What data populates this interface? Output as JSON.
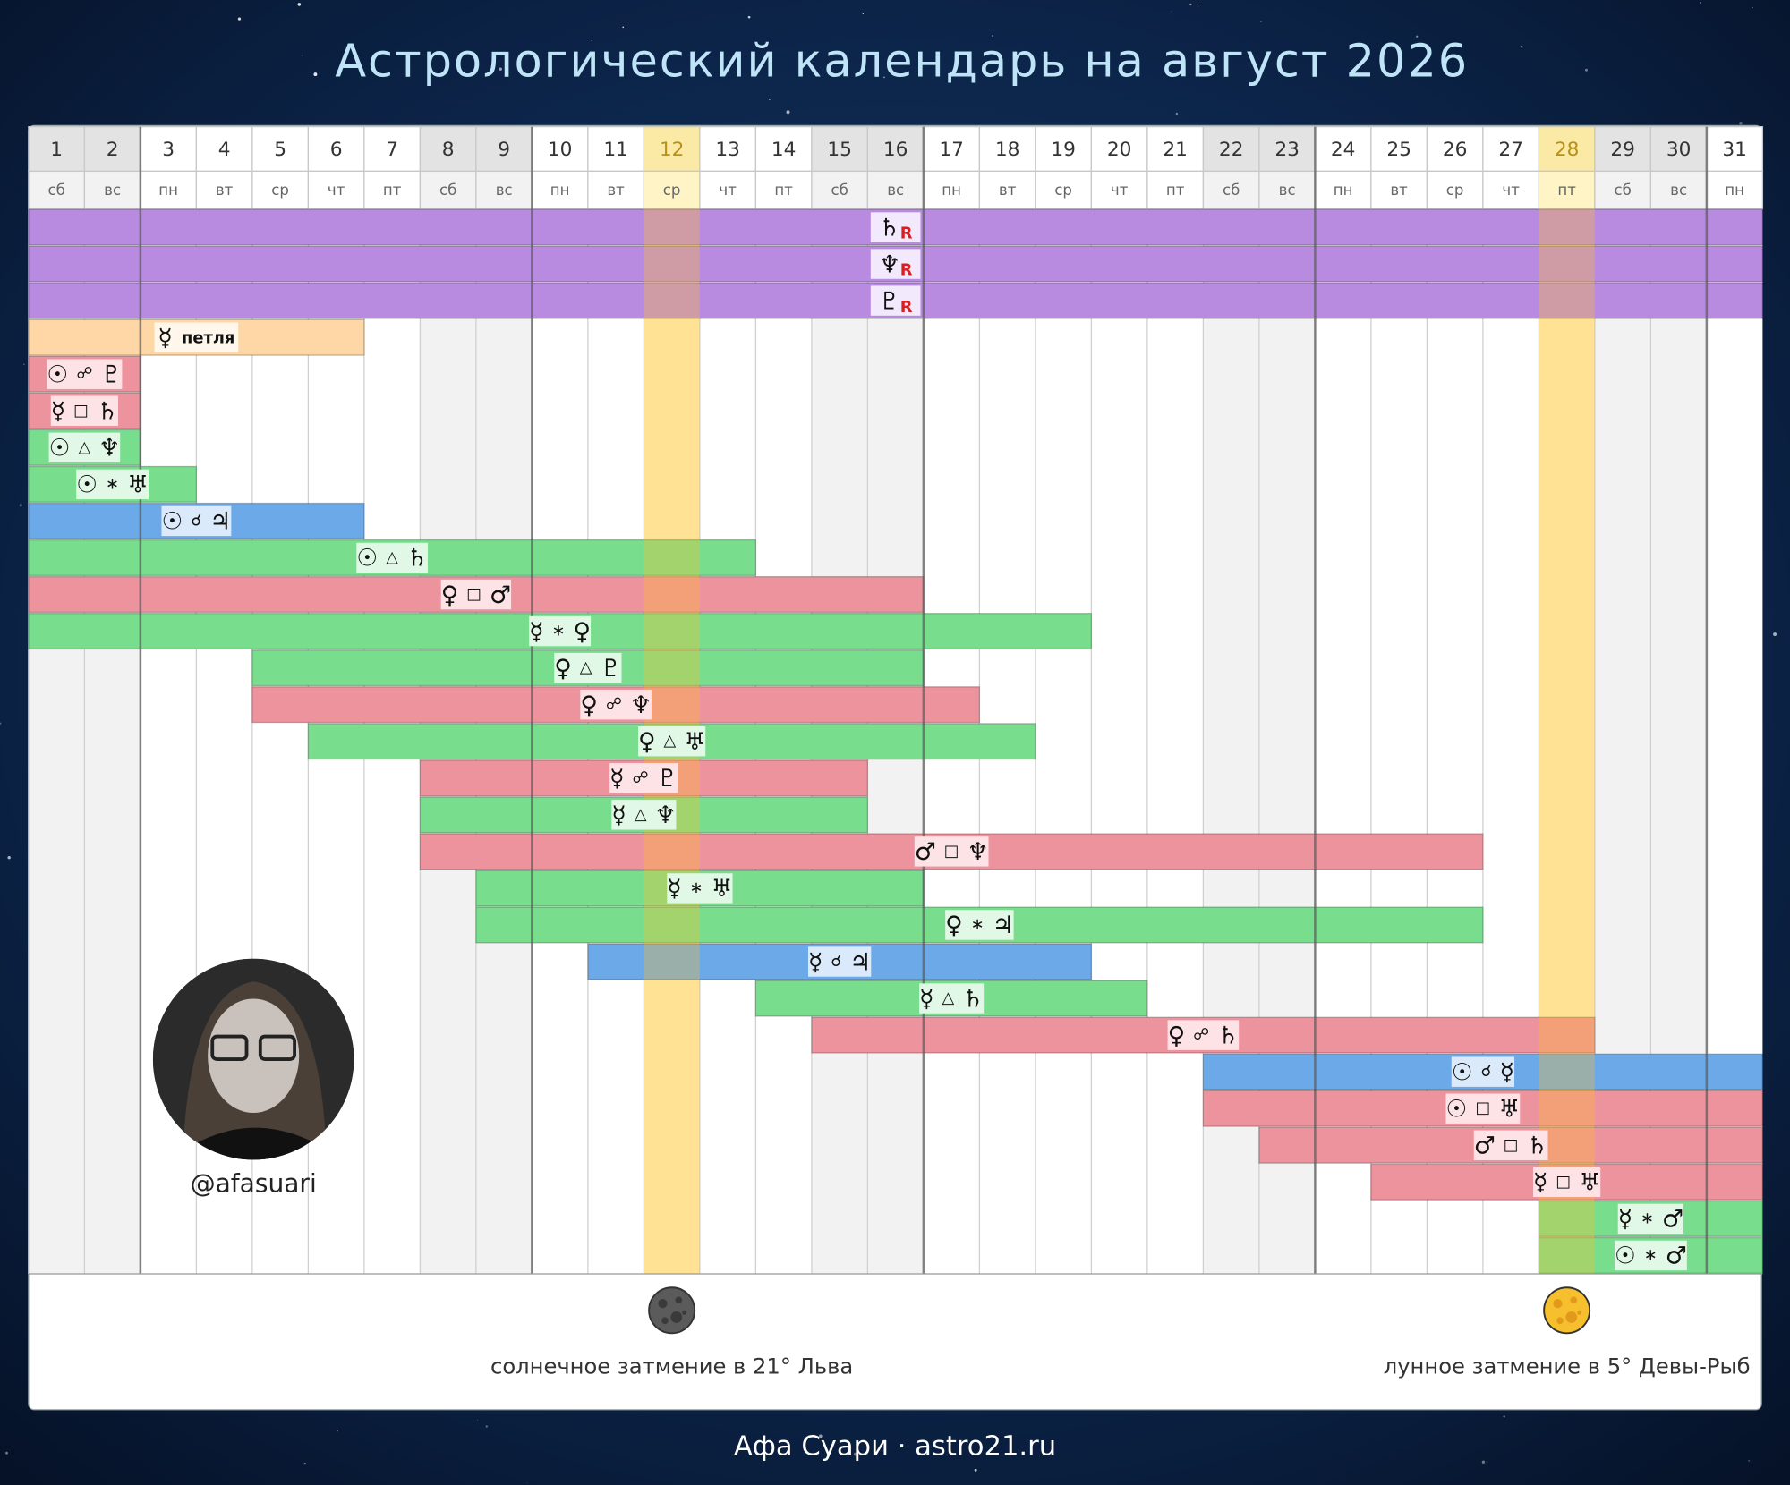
{
  "header": {
    "title": "Астрологический календарь на август 2026"
  },
  "calendar": {
    "days": [
      1,
      2,
      3,
      4,
      5,
      6,
      7,
      8,
      9,
      10,
      11,
      12,
      13,
      14,
      15,
      16,
      17,
      18,
      19,
      20,
      21,
      22,
      23,
      24,
      25,
      26,
      27,
      28,
      29,
      30,
      31
    ],
    "weekdays": [
      "сб",
      "вс",
      "пн",
      "вт",
      "ср",
      "чт",
      "пт",
      "сб",
      "вс",
      "пн",
      "вт",
      "ср",
      "чт",
      "пт",
      "сб",
      "вс",
      "пн",
      "вт",
      "ср",
      "чт",
      "пт",
      "сб",
      "вс",
      "пн",
      "вт",
      "ср",
      "чт",
      "пт",
      "сб",
      "вс",
      "пн"
    ],
    "weekends": [
      1,
      2,
      8,
      9,
      15,
      16,
      22,
      23,
      29,
      30
    ],
    "highlight": [
      12,
      28
    ],
    "kinds": {
      "retro": {
        "bar": "#b98be0",
        "box": "#f3e9fc"
      },
      "loop": {
        "bar": "#ffd7a6",
        "box": "#fff7ec"
      },
      "hard": {
        "bar": "#ed939e",
        "box": "#fde3e6"
      },
      "soft": {
        "bar": "#78de8d",
        "box": "#e2f8e6"
      },
      "conj": {
        "bar": "#6ba9e8",
        "box": "#dbeafb"
      }
    },
    "rows": [
      {
        "kind": "retro",
        "start": 1,
        "end": 31,
        "at": 16,
        "parts": [
          "♄",
          "R"
        ]
      },
      {
        "kind": "retro",
        "start": 1,
        "end": 31,
        "at": 16,
        "parts": [
          "♆",
          "R"
        ]
      },
      {
        "kind": "retro",
        "start": 1,
        "end": 31,
        "at": 16,
        "parts": [
          "♇",
          "R"
        ]
      },
      {
        "kind": "loop",
        "start": 1,
        "end": 6,
        "at": 3.5,
        "parts": [
          "☿",
          "петля"
        ]
      },
      {
        "kind": "hard",
        "start": 1,
        "end": 2,
        "at": 1.5,
        "parts": [
          "☉",
          "☍",
          "♇"
        ]
      },
      {
        "kind": "hard",
        "start": 1,
        "end": 2,
        "at": 1.5,
        "parts": [
          "☿",
          "□",
          "♄"
        ]
      },
      {
        "kind": "soft",
        "start": 1,
        "end": 2,
        "at": 1.5,
        "parts": [
          "☉",
          "△",
          "♆"
        ]
      },
      {
        "kind": "soft",
        "start": 1,
        "end": 3,
        "at": 2,
        "parts": [
          "☉",
          "∗",
          "♅"
        ]
      },
      {
        "kind": "conj",
        "start": 1,
        "end": 6,
        "at": 3.5,
        "parts": [
          "☉",
          "☌",
          "♃"
        ]
      },
      {
        "kind": "soft",
        "start": 1,
        "end": 13,
        "at": 7,
        "parts": [
          "☉",
          "△",
          "♄"
        ]
      },
      {
        "kind": "hard",
        "start": 1,
        "end": 16,
        "at": 8.5,
        "parts": [
          "♀",
          "□",
          "♂"
        ]
      },
      {
        "kind": "soft",
        "start": 1,
        "end": 19,
        "at": 10,
        "parts": [
          "☿",
          "∗",
          "♀"
        ]
      },
      {
        "kind": "soft",
        "start": 5,
        "end": 16,
        "at": 10.5,
        "parts": [
          "♀",
          "△",
          "♇"
        ]
      },
      {
        "kind": "hard",
        "start": 5,
        "end": 17,
        "at": 11,
        "parts": [
          "♀",
          "☍",
          "♆"
        ]
      },
      {
        "kind": "soft",
        "start": 6,
        "end": 18,
        "at": 12,
        "parts": [
          "♀",
          "△",
          "♅"
        ]
      },
      {
        "kind": "hard",
        "start": 8,
        "end": 15,
        "at": 11.5,
        "parts": [
          "☿",
          "☍",
          "♇"
        ]
      },
      {
        "kind": "soft",
        "start": 8,
        "end": 15,
        "at": 11.5,
        "parts": [
          "☿",
          "△",
          "♆"
        ]
      },
      {
        "kind": "hard",
        "start": 8,
        "end": 26,
        "at": 17,
        "parts": [
          "♂",
          "□",
          "♆"
        ]
      },
      {
        "kind": "soft",
        "start": 9,
        "end": 16,
        "at": 12.5,
        "parts": [
          "☿",
          "∗",
          "♅"
        ]
      },
      {
        "kind": "soft",
        "start": 9,
        "end": 26,
        "at": 17.5,
        "parts": [
          "♀",
          "∗",
          "♃"
        ]
      },
      {
        "kind": "conj",
        "start": 11,
        "end": 19,
        "at": 15,
        "parts": [
          "☿",
          "☌",
          "♃"
        ]
      },
      {
        "kind": "soft",
        "start": 14,
        "end": 20,
        "at": 17,
        "parts": [
          "☿",
          "△",
          "♄"
        ]
      },
      {
        "kind": "hard",
        "start": 15,
        "end": 28,
        "at": 21.5,
        "parts": [
          "♀",
          "☍",
          "♄"
        ]
      },
      {
        "kind": "conj",
        "start": 22,
        "end": 31,
        "at": 26.5,
        "parts": [
          "☉",
          "☌",
          "☿"
        ]
      },
      {
        "kind": "hard",
        "start": 22,
        "end": 31,
        "at": 26.5,
        "parts": [
          "☉",
          "□",
          "♅"
        ]
      },
      {
        "kind": "hard",
        "start": 23,
        "end": 31,
        "at": 27,
        "parts": [
          "♂",
          "□",
          "♄"
        ]
      },
      {
        "kind": "hard",
        "start": 25,
        "end": 31,
        "at": 28,
        "parts": [
          "☿",
          "□",
          "♅"
        ]
      },
      {
        "kind": "soft",
        "start": 28,
        "end": 31,
        "at": 29.5,
        "parts": [
          "☿",
          "∗",
          "♂"
        ]
      },
      {
        "kind": "soft",
        "start": 28,
        "end": 31,
        "at": 29.5,
        "parts": [
          "☉",
          "∗",
          "♂"
        ]
      }
    ]
  },
  "eclipses": [
    {
      "day": 12,
      "kind": "solar",
      "text": "солнечное затмение в 21° Льва"
    },
    {
      "day": 28,
      "kind": "lunar",
      "text": "лунное затмение в 5° Девы-Рыб"
    }
  ],
  "author": {
    "handle": "@afasuari"
  },
  "footer": {
    "text": "Афа Суари · astro21.ru"
  }
}
